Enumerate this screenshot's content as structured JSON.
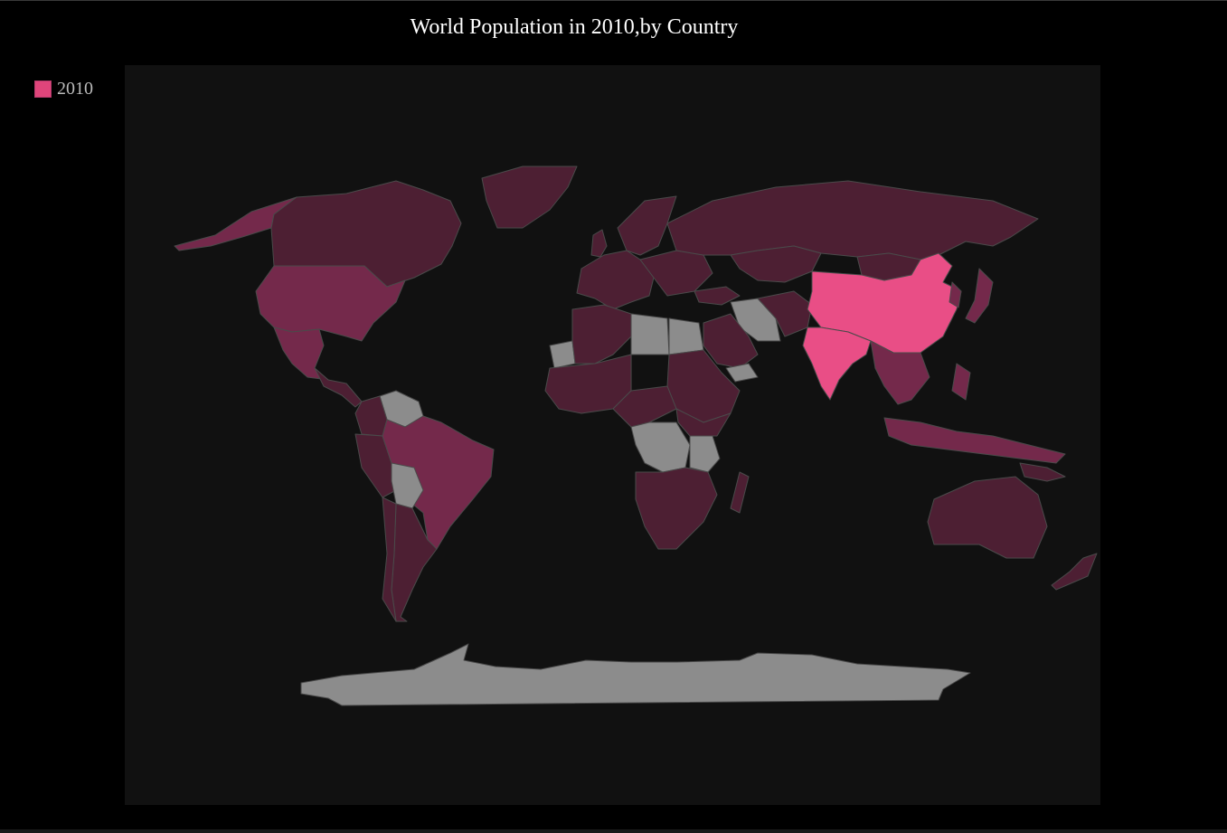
{
  "title": "World Population in 2010,by Country",
  "legend": {
    "label": "2010",
    "color": "#e0457b"
  },
  "colors": {
    "background": "#000000",
    "map_background": "#111111",
    "no_data": "#8c8c8c",
    "border": "#4a4a4a",
    "scale_low": "#4d1f33",
    "scale_mid": "#74294b",
    "scale_high": "#e94e86"
  },
  "chart_data": {
    "type": "choropleth",
    "title": "World Population in 2010,by Country",
    "series": [
      {
        "name": "2010",
        "regions": [
          {
            "region": "China",
            "level": "highest"
          },
          {
            "region": "India",
            "level": "highest"
          },
          {
            "region": "United States",
            "level": "medium"
          },
          {
            "region": "Alaska",
            "level": "medium"
          },
          {
            "region": "Brazil",
            "level": "medium"
          },
          {
            "region": "Canada",
            "level": "low"
          },
          {
            "region": "Russia",
            "level": "low"
          },
          {
            "region": "Australia",
            "level": "low"
          },
          {
            "region": "Greenland",
            "level": "low"
          },
          {
            "region": "Mexico",
            "level": "medium"
          },
          {
            "region": "Africa (most countries)",
            "level": "low"
          },
          {
            "region": "Europe (most countries)",
            "level": "low"
          },
          {
            "region": "Middle East (most countries)",
            "level": "low"
          },
          {
            "region": "Southeast Asia",
            "level": "medium"
          },
          {
            "region": "Indonesia",
            "level": "medium"
          },
          {
            "region": "Japan",
            "level": "medium"
          },
          {
            "region": "South America (other)",
            "level": "low"
          },
          {
            "region": "Iran",
            "level": "no data"
          },
          {
            "region": "Libya",
            "level": "no data"
          },
          {
            "region": "Egypt",
            "level": "no data"
          },
          {
            "region": "Venezuela",
            "level": "no data"
          },
          {
            "region": "Bolivia",
            "level": "no data"
          },
          {
            "region": "DR Congo",
            "level": "no data"
          },
          {
            "region": "Tanzania",
            "level": "no data"
          },
          {
            "region": "Yemen",
            "level": "no data"
          },
          {
            "region": "Western Sahara",
            "level": "no data"
          },
          {
            "region": "Antarctica",
            "level": "no data"
          }
        ]
      }
    ]
  }
}
